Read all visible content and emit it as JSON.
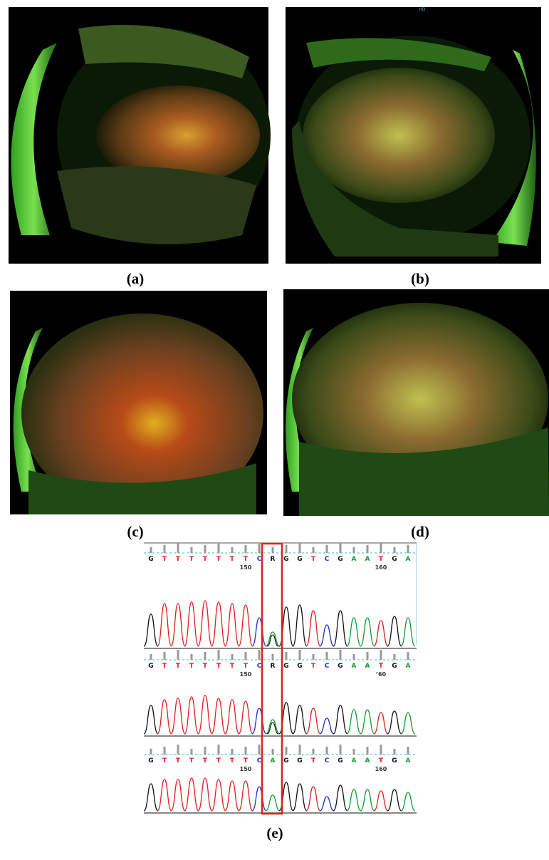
{
  "figure": {
    "panels": [
      {
        "label": "(a)"
      },
      {
        "label": "(b)",
        "overlay_text": "HD"
      },
      {
        "label": "(c)"
      },
      {
        "label": "(d)"
      }
    ],
    "chromatogram": {
      "label": "(e)",
      "traces": [
        {
          "bases": [
            "G",
            "T",
            "T",
            "T",
            "T",
            "T",
            "T",
            "T",
            "C",
            "R",
            "G",
            "G",
            "T",
            "C",
            "G",
            "A",
            "A",
            "T",
            "G",
            "A"
          ],
          "positions": [
            "150",
            "160"
          ]
        },
        {
          "bases": [
            "G",
            "T",
            "T",
            "T",
            "T",
            "T",
            "T",
            "T",
            "C",
            "R",
            "G",
            "G",
            "T",
            "C",
            "G",
            "A",
            "A",
            "T",
            "G",
            "A"
          ],
          "positions": [
            "150",
            "’60"
          ]
        },
        {
          "bases": [
            "G",
            "T",
            "T",
            "T",
            "T",
            "T",
            "T",
            "T",
            "C",
            "A",
            "G",
            "G",
            "T",
            "C",
            "G",
            "A",
            "A",
            "T",
            "G",
            "A"
          ],
          "positions": [
            "150",
            "160"
          ]
        }
      ]
    }
  }
}
